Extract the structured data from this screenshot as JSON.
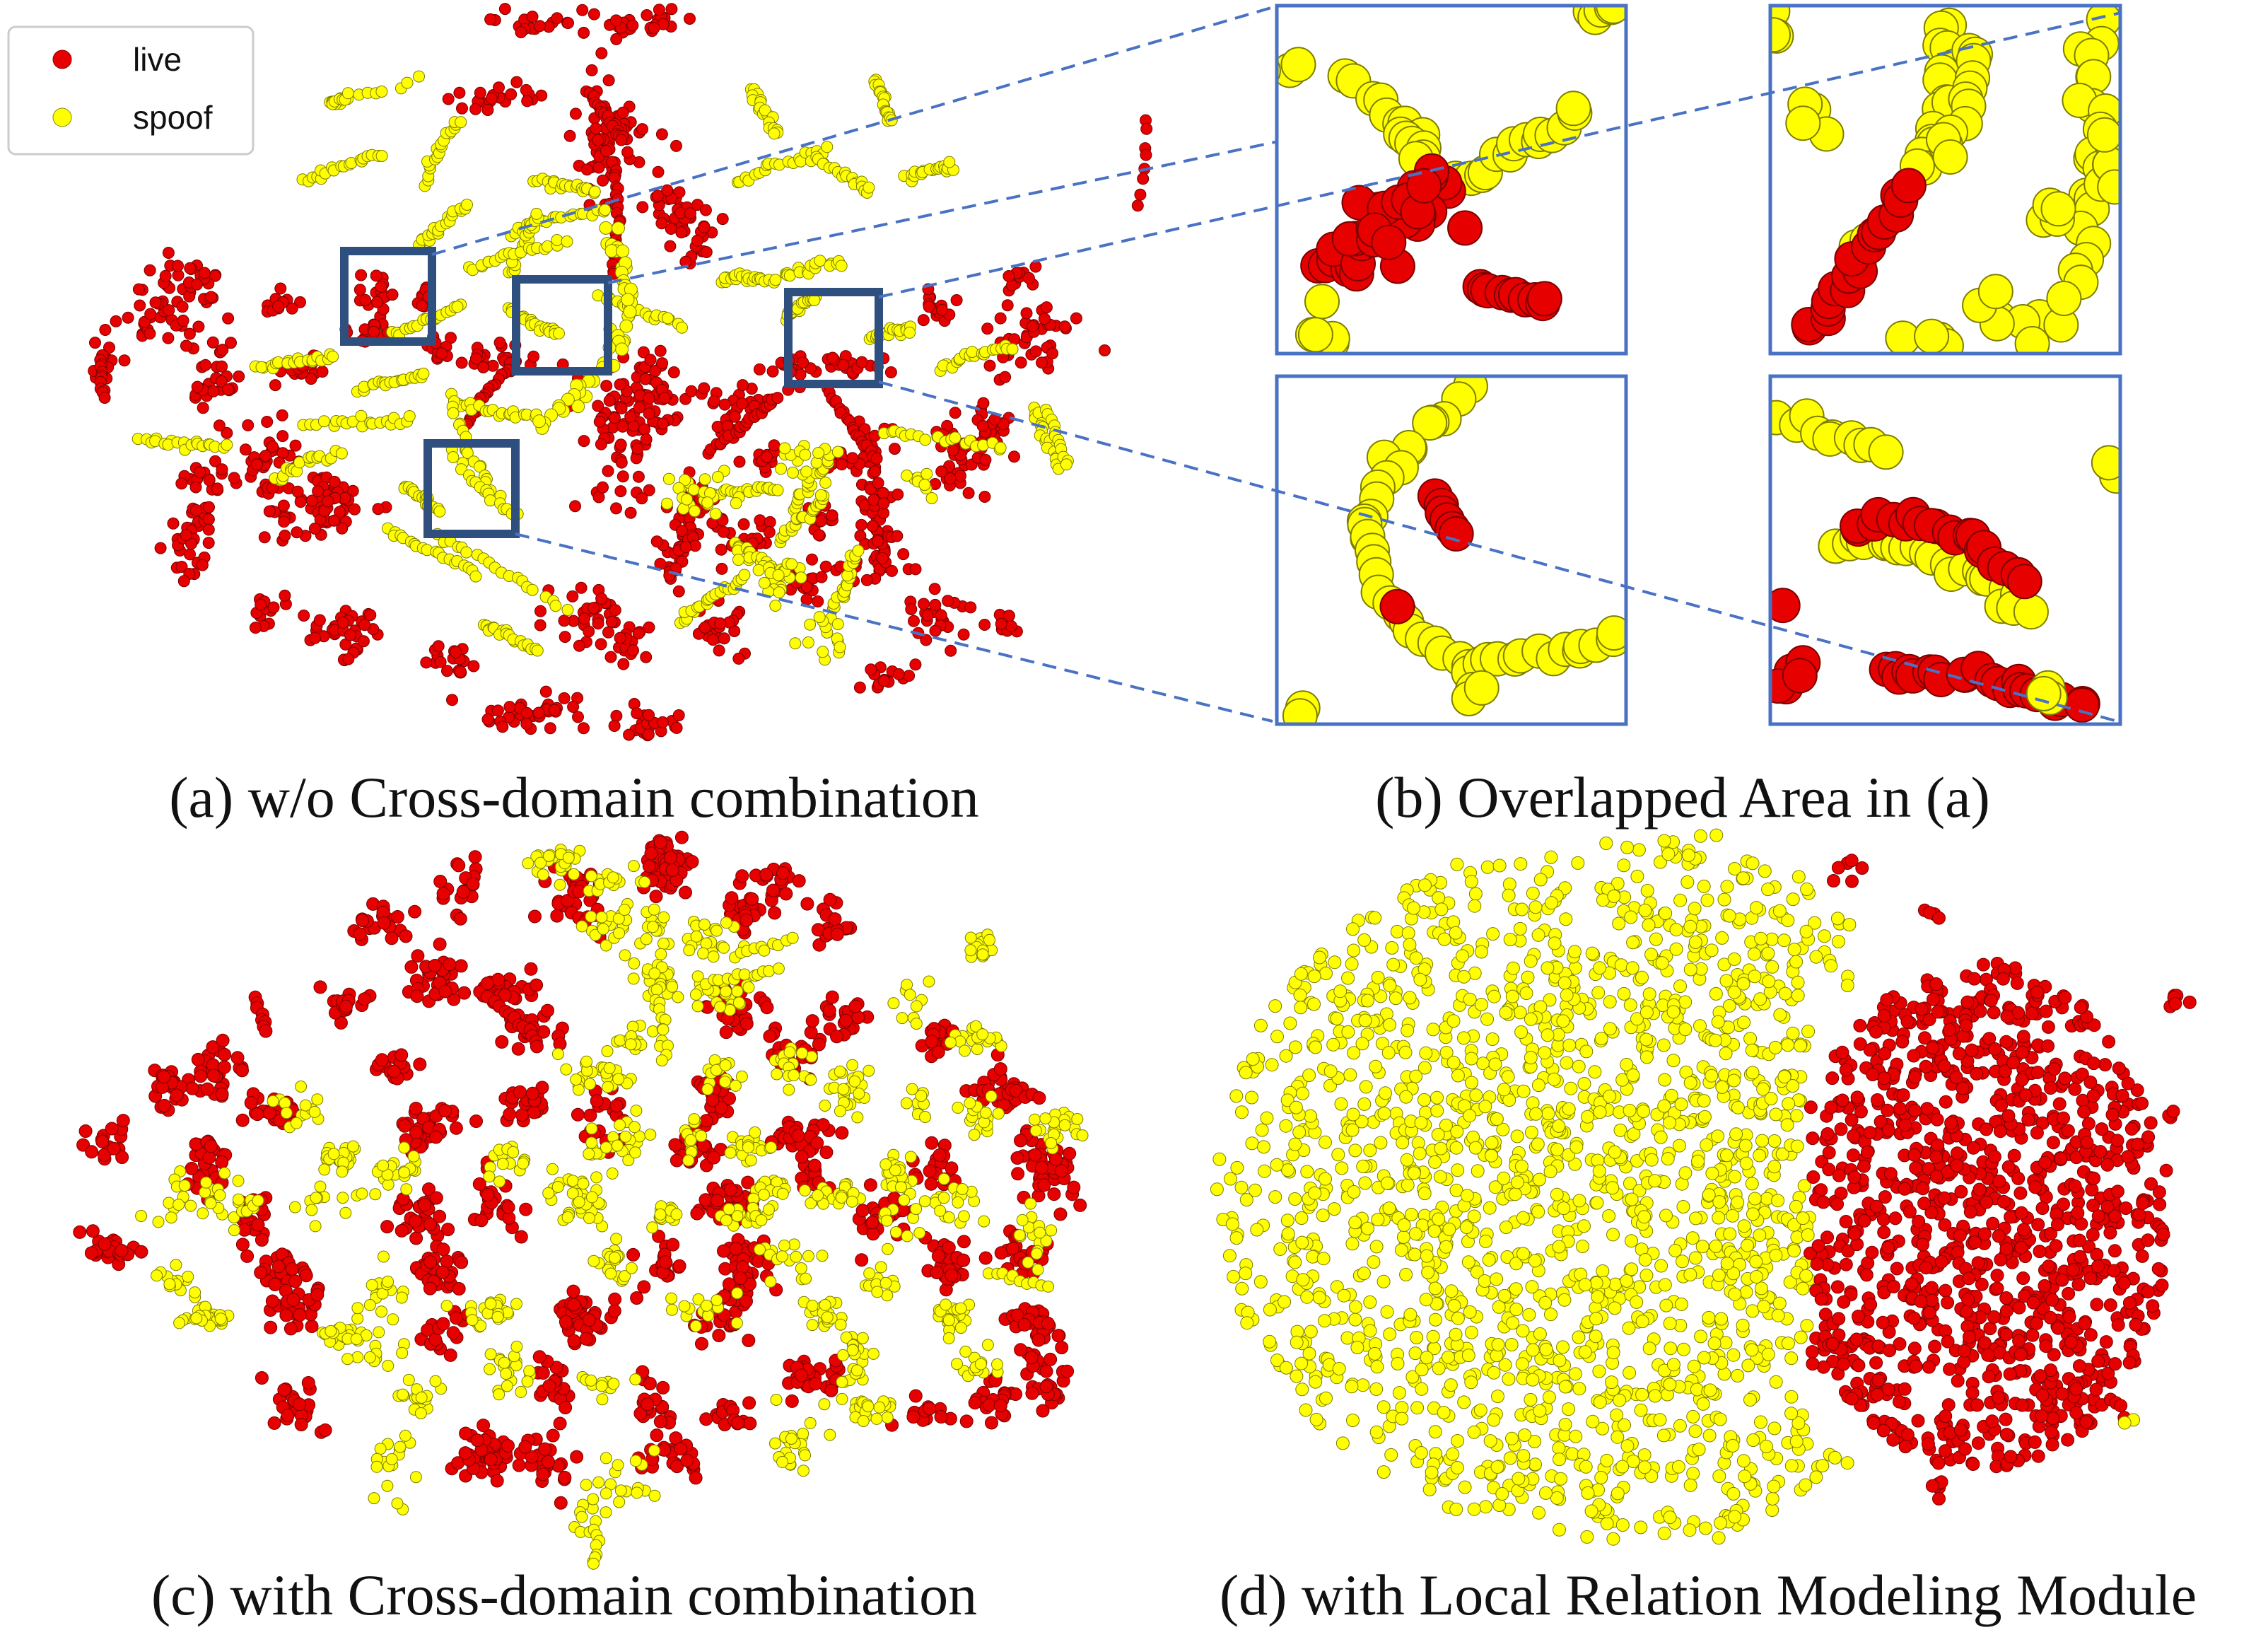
{
  "figure": {
    "panels": [
      {
        "id": "a",
        "caption": "(a) w/o Cross-domain combination"
      },
      {
        "id": "b",
        "caption": "(b) Overlapped Area in (a)"
      },
      {
        "id": "c",
        "caption": "(c) with Cross-domain combination"
      },
      {
        "id": "d",
        "caption": "(d) with Local Relation Modeling Module"
      }
    ],
    "legend": {
      "placement": "top-left",
      "items": [
        {
          "label": "live",
          "color": "#e60000"
        },
        {
          "label": "spoof",
          "color": "#ffff00"
        }
      ]
    },
    "colors": {
      "live": "#e60000",
      "spoof": "#ffff00",
      "highlight_box": "#2f4f7f",
      "zoom_box": "#4a72c4",
      "connector": "#4a72c4"
    }
  },
  "chart_data": [
    {
      "type": "scatter",
      "panel": "a",
      "title": "(a) w/o Cross-domain combination",
      "series": [
        {
          "name": "live",
          "color": "#e60000"
        },
        {
          "name": "spoof",
          "color": "#ffff00"
        }
      ],
      "legend": "top-left",
      "grid": false,
      "highlighted_regions": 4
    },
    {
      "type": "scatter",
      "panel": "b",
      "title": "(b) Overlapped Area in (a)",
      "series": [
        {
          "name": "live",
          "color": "#e60000"
        },
        {
          "name": "spoof",
          "color": "#ffff00"
        }
      ],
      "grid": false,
      "subplots": 4
    },
    {
      "type": "scatter",
      "panel": "c",
      "title": "(c) with Cross-domain combination",
      "series": [
        {
          "name": "live",
          "color": "#e60000"
        },
        {
          "name": "spoof",
          "color": "#ffff00"
        }
      ],
      "grid": false
    },
    {
      "type": "scatter",
      "panel": "d",
      "title": "(d) with Local Relation Modeling Module",
      "series": [
        {
          "name": "live",
          "color": "#e60000"
        },
        {
          "name": "spoof",
          "color": "#ffff00"
        }
      ],
      "grid": false
    }
  ]
}
